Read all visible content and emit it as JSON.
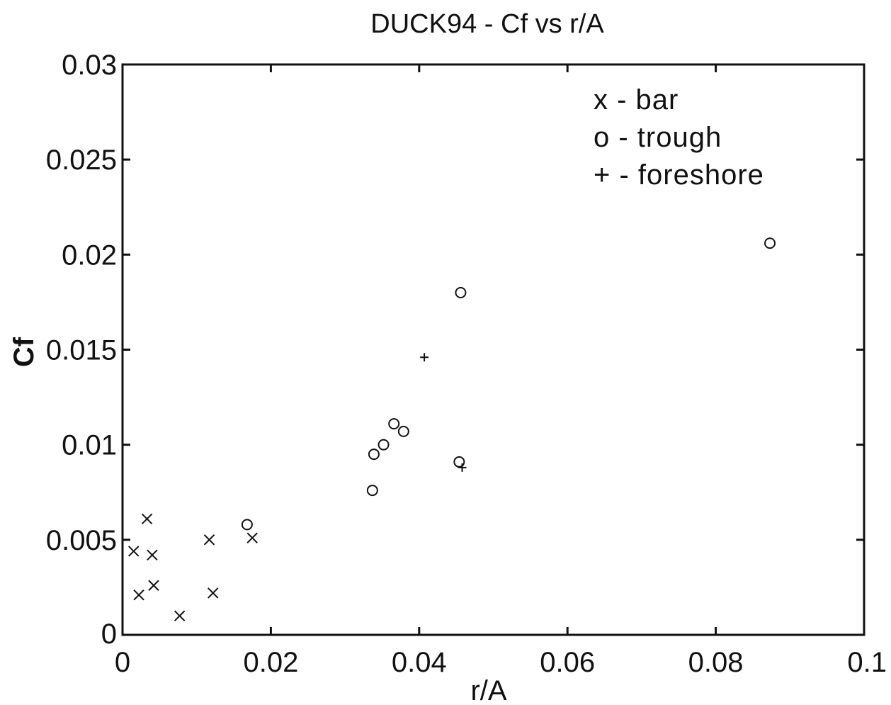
{
  "chart_data": {
    "type": "scatter",
    "title": "DUCK94 - Cf vs r/A",
    "xlabel": "r/A",
    "ylabel": "Cf",
    "xlim": [
      0,
      0.1
    ],
    "ylim": [
      0,
      0.03
    ],
    "x_ticks": [
      "0",
      "0.02",
      "0.04",
      "0.06",
      "0.08",
      "0.1"
    ],
    "y_ticks": [
      "0",
      "0.005",
      "0.01",
      "0.015",
      "0.02",
      "0.025",
      "0.03"
    ],
    "grid": false,
    "legend": {
      "position": "top-right",
      "entries": [
        "x - bar",
        "o - trough",
        "+ - foreshore"
      ]
    },
    "series": [
      {
        "marker": "x",
        "points": [
          [
            0.0015,
            0.0044
          ],
          [
            0.0033,
            0.0061
          ],
          [
            0.004,
            0.0042
          ],
          [
            0.0022,
            0.0021
          ],
          [
            0.0042,
            0.0026
          ],
          [
            0.0077,
            0.001
          ],
          [
            0.0117,
            0.005
          ],
          [
            0.0122,
            0.0022
          ],
          [
            0.0175,
            0.0051
          ]
        ]
      },
      {
        "marker": "o",
        "points": [
          [
            0.0168,
            0.0058
          ],
          [
            0.0337,
            0.0076
          ],
          [
            0.0339,
            0.0095
          ],
          [
            0.0352,
            0.01
          ],
          [
            0.0366,
            0.0111
          ],
          [
            0.0379,
            0.0107
          ],
          [
            0.0456,
            0.018
          ],
          [
            0.0454,
            0.0091
          ],
          [
            0.0873,
            0.0206
          ]
        ]
      },
      {
        "marker": "+",
        "points": [
          [
            0.0407,
            0.0146
          ],
          [
            0.0458,
            0.0088
          ]
        ]
      }
    ]
  }
}
